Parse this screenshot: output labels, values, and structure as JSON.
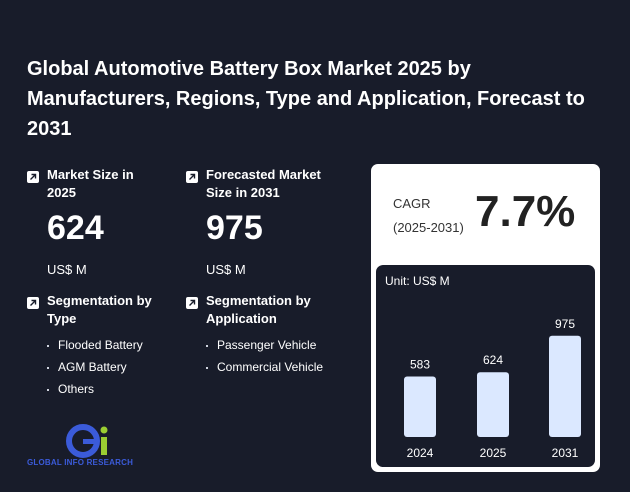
{
  "title": "Global Automotive Battery Box Market 2025 by Manufacturers, Regions, Type and Application, Forecast to 2031",
  "market_size": {
    "label": "Market Size in 2025",
    "value": "624",
    "unit": "US$ M"
  },
  "forecast": {
    "label": "Forecasted Market Size in 2031",
    "value": "975",
    "unit": "US$ M"
  },
  "segmentation_type": {
    "label": "Segmentation by Type",
    "items": [
      "Flooded Battery",
      "AGM Battery",
      "Others"
    ]
  },
  "segmentation_application": {
    "label": "Segmentation by Application",
    "items": [
      "Passenger Vehicle",
      "Commercial Vehicle"
    ]
  },
  "cagr": {
    "label": "CAGR",
    "period": "(2025-2031)",
    "value": "7.7%"
  },
  "logo": {
    "text": "GLOBAL INFO RESEARCH",
    "primary_color": "#3b5bd9",
    "accent_color": "#9acd32"
  },
  "chart_data": {
    "type": "bar",
    "unit_label": "Unit: US$ M",
    "categories": [
      "2024",
      "2025",
      "2031"
    ],
    "values": [
      583,
      624,
      975
    ],
    "ylim": [
      0,
      1040
    ],
    "grid": false,
    "bar_color": "#dbe8ff"
  }
}
